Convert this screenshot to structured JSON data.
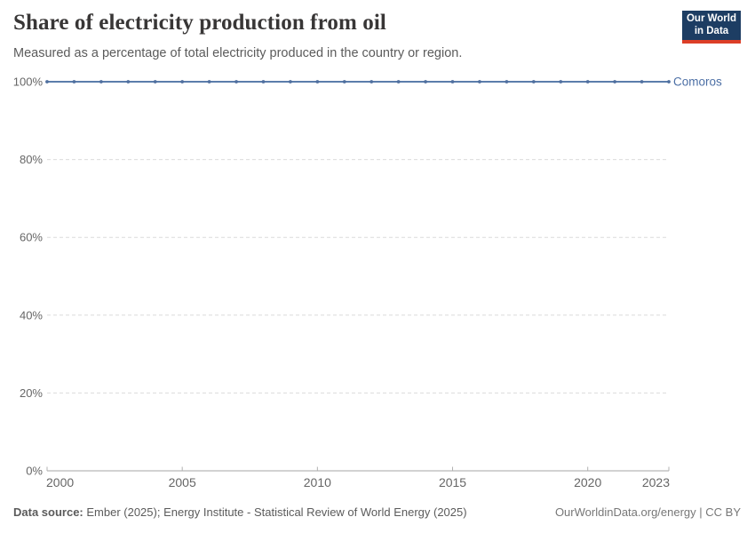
{
  "header": {
    "title": "Share of electricity production from oil",
    "subtitle": "Measured as a percentage of total electricity produced in the country or region.",
    "logo": {
      "line1": "Our World",
      "line2": "in Data"
    }
  },
  "chart_data": {
    "type": "line",
    "title": "Share of electricity production from oil",
    "xlabel": "",
    "ylabel": "",
    "xlim": [
      2000,
      2023
    ],
    "ylim": [
      0,
      100
    ],
    "grid": "horizontal-dashed",
    "legend_position": "right-of-line-end",
    "x": [
      2000,
      2001,
      2002,
      2003,
      2004,
      2005,
      2006,
      2007,
      2008,
      2009,
      2010,
      2011,
      2012,
      2013,
      2014,
      2015,
      2016,
      2017,
      2018,
      2019,
      2020,
      2021,
      2022,
      2023
    ],
    "series": [
      {
        "name": "Comoros",
        "values": [
          100,
          100,
          100,
          100,
          100,
          100,
          100,
          100,
          100,
          100,
          100,
          100,
          100,
          100,
          100,
          100,
          100,
          100,
          100,
          100,
          100,
          100,
          100,
          100
        ]
      }
    ],
    "x_ticks": [
      {
        "value": 2000,
        "label": "2000"
      },
      {
        "value": 2005,
        "label": "2005"
      },
      {
        "value": 2010,
        "label": "2010"
      },
      {
        "value": 2015,
        "label": "2015"
      },
      {
        "value": 2020,
        "label": "2020"
      },
      {
        "value": 2023,
        "label": "2023"
      }
    ],
    "y_ticks": [
      {
        "value": 0,
        "label": "0%"
      },
      {
        "value": 20,
        "label": "20%"
      },
      {
        "value": 40,
        "label": "40%"
      },
      {
        "value": 60,
        "label": "60%"
      },
      {
        "value": 80,
        "label": "80%"
      },
      {
        "value": 100,
        "label": "100%"
      }
    ]
  },
  "colors": {
    "series_line": "#5b7dab",
    "series_marker": "#4f6f9f",
    "series_label": "#4c6fa5",
    "gridline": "#dcdcdc",
    "axis_line": "#a5a5a5",
    "tick_mark": "#b0b0b0",
    "tick_label": "#666666",
    "logo_navy": "#1d3d63",
    "logo_red": "#dc3e27"
  },
  "footer": {
    "source_label": "Data source:",
    "source_text": " Ember (2025); Energy Institute - Statistical Review of World Energy (2025)",
    "credit": "OurWorldinData.org/energy | CC BY"
  }
}
